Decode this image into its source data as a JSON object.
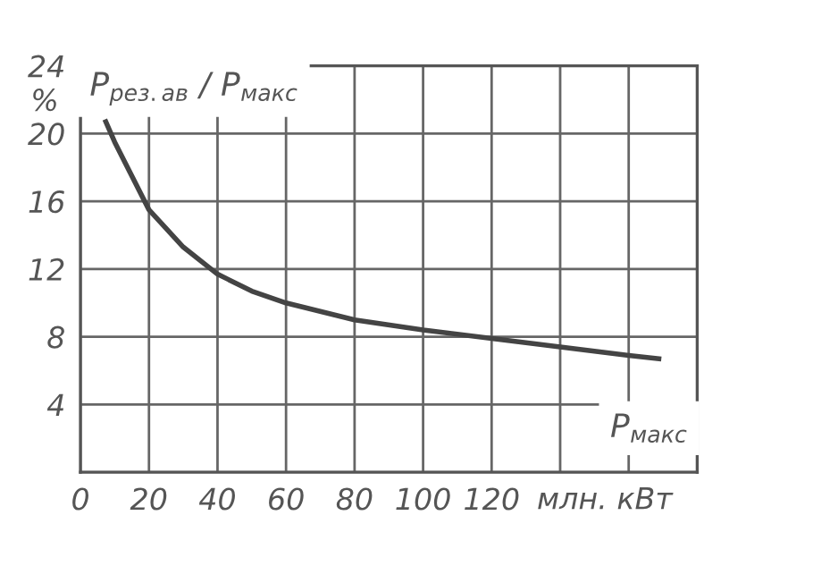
{
  "chart_data": {
    "type": "line",
    "x": [
      7.4,
      10,
      20,
      30,
      40,
      50,
      60,
      80,
      100,
      120,
      140,
      160,
      168.8
    ],
    "series": [
      {
        "color": "#444444",
        "values": [
          20.7,
          19.5,
          15.5,
          13.3,
          11.7,
          10.7,
          10.0,
          9.0,
          8.4,
          7.9,
          7.4,
          6.9,
          6.7
        ]
      }
    ],
    "xlim": [
      0,
      180
    ],
    "xticks": [
      0,
      20,
      40,
      60,
      80,
      100,
      120,
      {
        "value": 140,
        "label": null
      },
      {
        "value": 160,
        "label": null
      },
      {
        "value": 180,
        "label": null
      }
    ],
    "ylim": [
      0,
      24
    ],
    "yticks": [
      {
        "value": 0,
        "label": null
      },
      4,
      8,
      12,
      16,
      20,
      24
    ],
    "ylabel": "P$_{рез.ав}$ / P$_{макс}$",
    "xlabel": "P$_{макс}$",
    "annotations": [
      "млн. кВт",
      "%"
    ],
    "grid": true,
    "legend": false,
    "marker": "none",
    "line_style": "solid"
  }
}
